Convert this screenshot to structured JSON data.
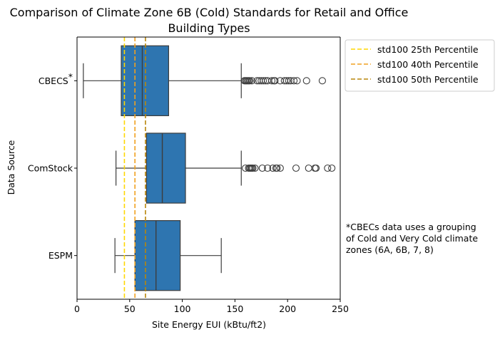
{
  "chart_data": {
    "type": "box",
    "title_lines": [
      "Comparison of Climate Zone 6B (Cold) Standards for Retail and Office",
      "Building Types"
    ],
    "xlabel": "Site Energy EUI (kBtu/ft2)",
    "ylabel": "Data Source",
    "xlim": [
      0,
      250
    ],
    "xticks": [
      0,
      50,
      100,
      150,
      200,
      250
    ],
    "grid": false,
    "box_color": "#2e75b0",
    "categories": [
      {
        "label": "CBECS",
        "label_suffix": "*",
        "whisker_low": 6,
        "q1": 42,
        "median": 62,
        "q3": 87,
        "whisker_high": 156,
        "outliers": [
          159,
          160,
          161,
          162,
          163,
          164,
          166,
          171,
          173,
          175,
          177,
          179,
          181,
          185,
          187,
          188,
          193,
          197,
          199,
          201,
          203,
          206,
          209,
          218,
          233
        ]
      },
      {
        "label": "ComStock",
        "label_suffix": "",
        "whisker_low": 37,
        "q1": 66,
        "median": 81,
        "q3": 103,
        "whisker_high": 156,
        "outliers": [
          160,
          163,
          164,
          165,
          166,
          167,
          169,
          176,
          181,
          186,
          189,
          190,
          193,
          208,
          220,
          226,
          227,
          238,
          242
        ]
      },
      {
        "label": "ESPM",
        "label_suffix": "",
        "whisker_low": 36,
        "q1": 55,
        "median": 75,
        "q3": 98,
        "whisker_high": 137,
        "outliers": []
      }
    ],
    "reference_lines": [
      {
        "name": "std100 25th Percentile",
        "value": 45,
        "color": "#ffd700"
      },
      {
        "name": "std100 40th Percentile",
        "value": 55,
        "color": "#f0a020"
      },
      {
        "name": "std100 50th Percentile",
        "value": 65,
        "color": "#b8860b"
      }
    ],
    "legend_position": "outside-top-right",
    "annotation_lines": [
      "*CBECs data uses a grouping",
      "of Cold and Very Cold climate",
      "zones (6A, 6B, 7, 8)"
    ]
  }
}
